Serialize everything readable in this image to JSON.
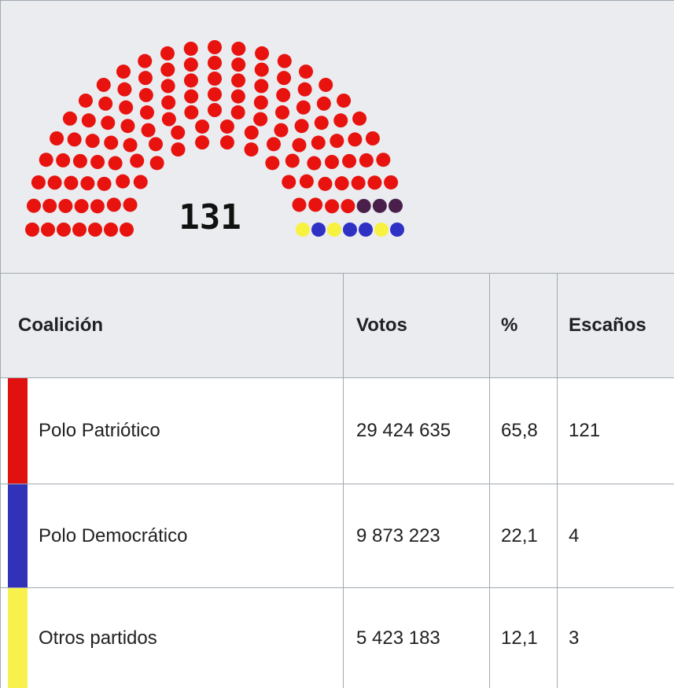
{
  "diagram": {
    "label": "131",
    "seat_groups": [
      {
        "color": "#e8130f",
        "count": 121
      },
      {
        "color": "#4b1f4b",
        "count": 3
      },
      {
        "color": "#f7f23f",
        "count": 3
      },
      {
        "color": "#2f30c4",
        "count": 4
      }
    ]
  },
  "table": {
    "header": [
      "Coalición",
      "Votos",
      "%",
      "Escaños"
    ],
    "rows": [
      {
        "color": "#e0110f",
        "cells": [
          "Polo Patriótico",
          "29 424 635",
          "65,8",
          "121"
        ]
      },
      {
        "color": "#3232b8",
        "cells": [
          "Polo Democrático",
          "9 873 223",
          "22,1",
          "4"
        ]
      },
      {
        "color": "#f7f14d",
        "cells": [
          "Otros partidos",
          "5 423 183",
          "12,1",
          "3"
        ]
      }
    ]
  }
}
